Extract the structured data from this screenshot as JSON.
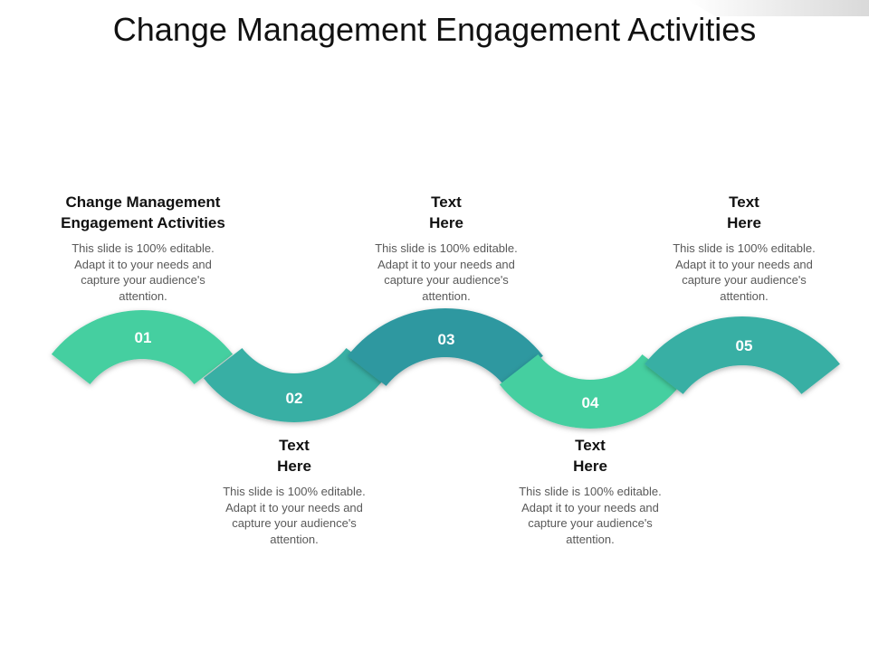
{
  "title": "Change Management Engagement Activities",
  "colors": {
    "light_green": "#45cfa0",
    "mid_teal": "#38afa4",
    "dark_teal": "#2e98a0",
    "heading": "#111111",
    "body": "#595959"
  },
  "steps": [
    {
      "number": "01",
      "heading": "Change Management\nEngagement Activities",
      "text": "This slide is 100% editable. Adapt it to your needs and capture your audience's attention.",
      "color": "#45cfa0"
    },
    {
      "number": "02",
      "heading": "Text\nHere",
      "text": "This slide is 100% editable. Adapt it to your needs and capture your audience's attention.",
      "color": "#38afa4"
    },
    {
      "number": "03",
      "heading": "Text\nHere",
      "text": "This slide is 100% editable. Adapt it to your needs and capture your audience's attention.",
      "color": "#2e98a0"
    },
    {
      "number": "04",
      "heading": "Text\nHere",
      "text": "This slide is 100% editable. Adapt it to your needs and capture your audience's attention.",
      "color": "#45cfa0"
    },
    {
      "number": "05",
      "heading": "Text\nHere",
      "text": "This slide is 100% editable. Adapt it to your needs and capture your audience's attention.",
      "color": "#38afa4"
    }
  ]
}
